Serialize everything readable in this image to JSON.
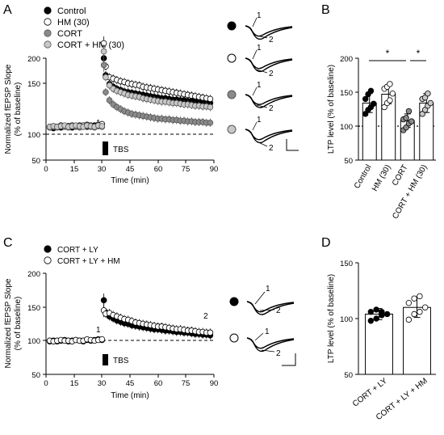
{
  "figure": {
    "panels": [
      {
        "letter": "A",
        "chart_type": "line",
        "legend": [
          {
            "marker": "filled-black",
            "label": "Control"
          },
          {
            "marker": "open",
            "label": "HM (30)"
          },
          {
            "marker": "filled-gray",
            "label": "CORT"
          },
          {
            "marker": "filled-lightgray",
            "label": "CORT + HM (30)"
          }
        ],
        "ylabel_line1": "Normalized fEPSP Slope",
        "ylabel_line2": "(% of baseline)",
        "xlabel": "Time (min)",
        "yticks": [
          "50",
          "100",
          "150",
          "200"
        ],
        "xticks": [
          "0",
          "15",
          "30",
          "45",
          "60",
          "75",
          "90"
        ],
        "tbs_label": "TBS",
        "marker_1": "1",
        "marker_2": "2"
      },
      {
        "letter": "B",
        "chart_type": "bar",
        "ylabel": "LTP level (% of baseline)",
        "yticks": [
          "50",
          "100",
          "150",
          "200"
        ],
        "categories": [
          "Control",
          "HM (30)",
          "CORT",
          "CORT + HM (30)"
        ],
        "sig": [
          "*",
          "*"
        ]
      },
      {
        "letter": "C",
        "chart_type": "line",
        "legend": [
          {
            "marker": "filled-black",
            "label": "CORT + LY"
          },
          {
            "marker": "open",
            "label": "CORT + LY + HM"
          }
        ],
        "ylabel_line1": "Normalized fEPSP Slope",
        "ylabel_line2": "(% of baseline)",
        "xlabel": "Time (min)",
        "yticks": [
          "50",
          "100",
          "150",
          "200"
        ],
        "xticks": [
          "0",
          "15",
          "30",
          "45",
          "60",
          "75",
          "90"
        ],
        "tbs_label": "TBS",
        "marker_1": "1",
        "marker_2": "2"
      },
      {
        "letter": "D",
        "chart_type": "bar",
        "ylabel": "LTP level (% of baseline)",
        "yticks": [
          "50",
          "100",
          "150"
        ],
        "categories": [
          "CORT + LY",
          "CORT + LY + HM"
        ]
      }
    ],
    "traces_A": {
      "labels": [
        "1",
        "2"
      ]
    },
    "traces_C": {
      "labels": [
        "1",
        "2"
      ]
    }
  },
  "chart_data": [
    {
      "panel": "A",
      "type": "line",
      "xlabel": "Time (min)",
      "ylabel": "Normalized fEPSP Slope (% of baseline)",
      "xlim": [
        0,
        90
      ],
      "ylim": [
        50,
        200
      ],
      "baseline": 100,
      "tbs_at": 30,
      "series": [
        {
          "name": "Control",
          "color": "#000000",
          "fill": "#000000",
          "x": [
            2,
            4,
            6,
            8,
            10,
            12,
            14,
            16,
            18,
            20,
            22,
            24,
            26,
            28,
            30,
            31,
            32,
            34,
            36,
            38,
            40,
            42,
            44,
            46,
            48,
            50,
            52,
            54,
            56,
            58,
            60,
            62,
            64,
            66,
            68,
            70,
            72,
            74,
            76,
            78,
            80,
            82,
            84,
            86,
            88
          ],
          "y": [
            98,
            97,
            99,
            98,
            99,
            100,
            98,
            99,
            101,
            100,
            99,
            100,
            101,
            100,
            101,
            200,
            175,
            162,
            158,
            155,
            153,
            151,
            150,
            149,
            148,
            147,
            146,
            145,
            144,
            143,
            142,
            141,
            141,
            140,
            139,
            139,
            138,
            138,
            137,
            137,
            136,
            136,
            135,
            135,
            134
          ]
        },
        {
          "name": "HM (30)",
          "color": "#000000",
          "fill": "#ffffff",
          "x": [
            2,
            4,
            6,
            8,
            10,
            12,
            14,
            16,
            18,
            20,
            22,
            24,
            26,
            28,
            30,
            31,
            32,
            34,
            36,
            38,
            40,
            42,
            44,
            46,
            48,
            50,
            52,
            54,
            56,
            58,
            60,
            62,
            64,
            66,
            68,
            70,
            72,
            74,
            76,
            78,
            80,
            82,
            84,
            86,
            88
          ],
          "y": [
            99,
            100,
            99,
            101,
            100,
            100,
            101,
            100,
            99,
            101,
            102,
            101,
            100,
            102,
            103,
            222,
            188,
            172,
            170,
            168,
            166,
            165,
            163,
            162,
            161,
            160,
            158,
            157,
            156,
            155,
            154,
            153,
            152,
            151,
            150,
            149,
            148,
            147,
            146,
            145,
            144,
            143,
            142,
            141,
            140
          ]
        },
        {
          "name": "CORT",
          "color": "#555555",
          "fill": "#8a8a8a",
          "x": [
            2,
            4,
            6,
            8,
            10,
            12,
            14,
            16,
            18,
            20,
            22,
            24,
            26,
            28,
            30,
            31,
            32,
            34,
            36,
            38,
            40,
            42,
            44,
            46,
            48,
            50,
            52,
            54,
            56,
            58,
            60,
            62,
            64,
            66,
            68,
            70,
            72,
            74,
            76,
            78,
            80,
            82,
            84,
            86,
            88
          ],
          "y": [
            98,
            99,
            98,
            100,
            99,
            98,
            100,
            99,
            98,
            99,
            100,
            99,
            98,
            100,
            99,
            190,
            150,
            138,
            132,
            128,
            125,
            122,
            120,
            118,
            117,
            116,
            115,
            114,
            113,
            112,
            111,
            111,
            110,
            110,
            109,
            109,
            108,
            108,
            107,
            107,
            106,
            106,
            106,
            105,
            105
          ]
        },
        {
          "name": "CORT + HM (30)",
          "color": "#555555",
          "fill": "#c8c8c8",
          "x": [
            2,
            4,
            6,
            8,
            10,
            12,
            14,
            16,
            18,
            20,
            22,
            24,
            26,
            28,
            30,
            31,
            32,
            34,
            36,
            38,
            40,
            42,
            44,
            46,
            48,
            50,
            52,
            54,
            56,
            58,
            60,
            62,
            64,
            66,
            68,
            70,
            72,
            74,
            76,
            78,
            80,
            82,
            84,
            86,
            88
          ],
          "y": [
            99,
            100,
            99,
            100,
            101,
            99,
            100,
            101,
            100,
            99,
            101,
            100,
            99,
            101,
            100,
            210,
            172,
            160,
            155,
            152,
            150,
            148,
            146,
            145,
            144,
            143,
            141,
            140,
            139,
            138,
            137,
            136,
            136,
            135,
            134,
            134,
            133,
            132,
            132,
            131,
            130,
            130,
            129,
            129,
            128
          ]
        }
      ]
    },
    {
      "panel": "B",
      "type": "bar",
      "categories": [
        "Control",
        "HM (30)",
        "CORT",
        "CORT + HM (30)"
      ],
      "values": [
        134,
        147,
        108,
        134
      ],
      "errors": [
        14,
        14,
        10,
        14
      ],
      "points": [
        [
          118,
          124,
          128,
          133,
          140,
          147,
          152
        ],
        [
          128,
          134,
          138,
          148,
          155,
          158,
          162
        ],
        [
          94,
          98,
          104,
          107,
          110,
          112,
          122
        ],
        [
          118,
          124,
          130,
          134,
          140,
          142,
          148
        ]
      ],
      "bar_fill": "#ffffff",
      "point_fills": [
        "#000000",
        "#ffffff",
        "#8a8a8a",
        "#c8c8c8"
      ],
      "ylabel": "LTP level (% of baseline)",
      "ylim": [
        50,
        200
      ],
      "baseline": 100,
      "significance": [
        {
          "from": 0,
          "to": 2,
          "label": "*"
        },
        {
          "from": 2,
          "to": 3,
          "label": "*"
        }
      ]
    },
    {
      "panel": "C",
      "type": "line",
      "xlabel": "Time (min)",
      "ylabel": "Normalized fEPSP Slope (% of baseline)",
      "xlim": [
        0,
        90
      ],
      "ylim": [
        50,
        200
      ],
      "baseline": 100,
      "tbs_at": 30,
      "series": [
        {
          "name": "CORT + LY",
          "color": "#000000",
          "fill": "#000000",
          "x": [
            2,
            4,
            6,
            8,
            10,
            12,
            14,
            16,
            18,
            20,
            22,
            24,
            26,
            28,
            30,
            31,
            32,
            34,
            36,
            38,
            40,
            42,
            44,
            46,
            48,
            50,
            52,
            54,
            56,
            58,
            60,
            62,
            64,
            66,
            68,
            70,
            72,
            74,
            76,
            78,
            80,
            82,
            84,
            86,
            88
          ],
          "y": [
            99,
            100,
            99,
            100,
            101,
            99,
            100,
            101,
            100,
            99,
            101,
            100,
            101,
            102,
            101,
            160,
            142,
            136,
            133,
            130,
            128,
            126,
            125,
            123,
            122,
            121,
            120,
            119,
            118,
            117,
            117,
            116,
            115,
            115,
            114,
            113,
            113,
            112,
            112,
            111,
            110,
            110,
            109,
            109,
            108
          ]
        },
        {
          "name": "CORT + LY + HM",
          "color": "#000000",
          "fill": "#ffffff",
          "x": [
            2,
            4,
            6,
            8,
            10,
            12,
            14,
            16,
            18,
            20,
            22,
            24,
            26,
            28,
            30,
            31,
            32,
            34,
            36,
            38,
            40,
            42,
            44,
            46,
            48,
            50,
            52,
            54,
            56,
            58,
            60,
            62,
            64,
            66,
            68,
            70,
            72,
            74,
            76,
            78,
            80,
            82,
            84,
            86,
            88
          ],
          "y": [
            100,
            99,
            100,
            101,
            100,
            100,
            99,
            101,
            100,
            100,
            102,
            101,
            100,
            101,
            102,
            145,
            140,
            141,
            138,
            136,
            134,
            132,
            131,
            129,
            127,
            126,
            125,
            124,
            123,
            122,
            121,
            121,
            120,
            119,
            118,
            117,
            117,
            116,
            115,
            115,
            114,
            113,
            113,
            112,
            112
          ]
        }
      ]
    },
    {
      "panel": "D",
      "type": "bar",
      "categories": [
        "CORT + LY",
        "CORT + LY + HM"
      ],
      "values": [
        104,
        110
      ],
      "errors": [
        5,
        9
      ],
      "points": [
        [
          98,
          100,
          103,
          104,
          106,
          108,
          106
        ],
        [
          99,
          104,
          106,
          110,
          114,
          118,
          120
        ]
      ],
      "bar_fill": "#ffffff",
      "point_fills": [
        "#000000",
        "#ffffff"
      ],
      "ylabel": "LTP level (% of baseline)",
      "ylim": [
        50,
        150
      ],
      "baseline": 100
    }
  ]
}
